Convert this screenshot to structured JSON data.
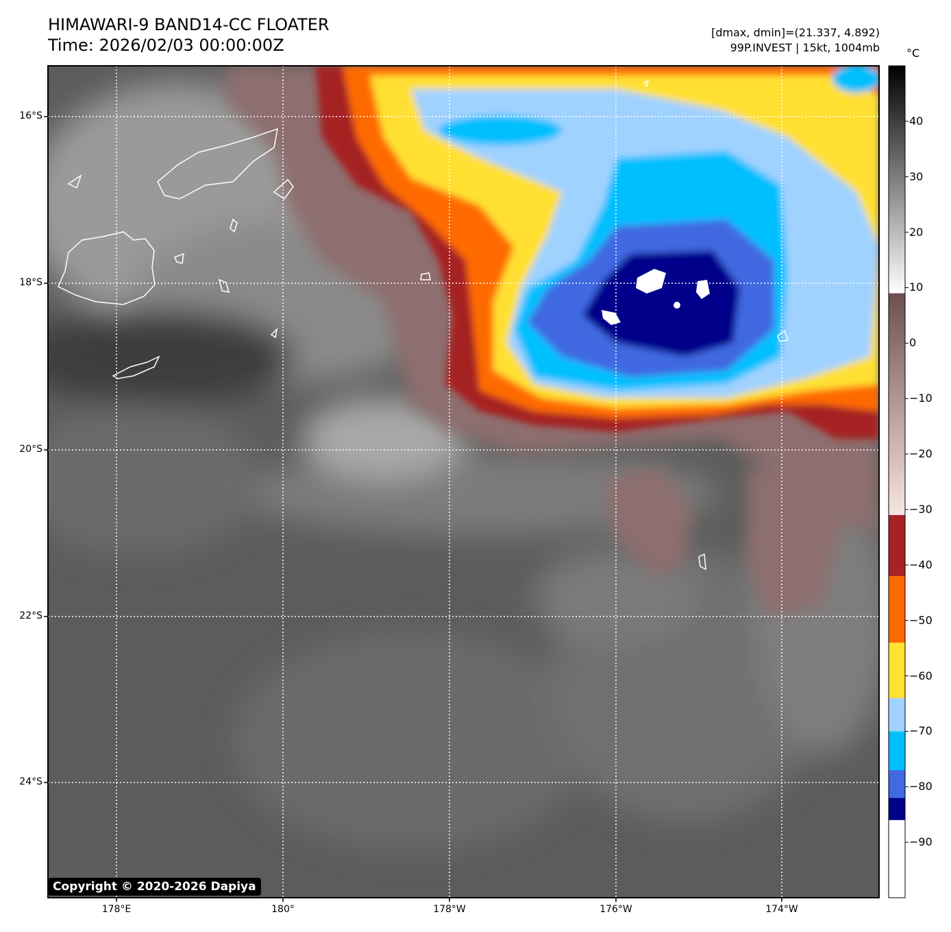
{
  "header": {
    "title_line1": "HIMAWARI-9 BAND14-CC FLOATER",
    "title_line2": "Time: 2026/02/03 00:00:00Z",
    "stats_line": "[dmax, dmin]=(21.337, 4.892)",
    "storm_line": "99P.INVEST | 15kt, 1004mb"
  },
  "axes": {
    "lat_labels": [
      "16°S",
      "18°S",
      "20°S",
      "22°S",
      "24°S"
    ],
    "lon_labels": [
      "178°E",
      "180°",
      "178°W",
      "176°W",
      "174°W"
    ]
  },
  "colorbar": {
    "unit": "°C",
    "tick_labels": [
      "40",
      "30",
      "20",
      "10",
      "0",
      "−10",
      "−20",
      "−30",
      "−40",
      "−50",
      "−60",
      "−70",
      "−80",
      "−90"
    ],
    "segments": [
      {
        "from": -100,
        "to": -86,
        "color": "#ffffff"
      },
      {
        "from": -86,
        "to": -82,
        "color": "#00008b"
      },
      {
        "from": -82,
        "to": -77,
        "color": "#4169e1"
      },
      {
        "from": -77,
        "to": -70,
        "color": "#00bfff"
      },
      {
        "from": -70,
        "to": -64,
        "color": "#a0d2ff"
      },
      {
        "from": -64,
        "to": -54,
        "color": "#ffe033"
      },
      {
        "from": -54,
        "to": -42,
        "color": "#ff6a00"
      },
      {
        "from": -42,
        "to": -31,
        "color": "#a52323"
      }
    ],
    "gradient_segments": [
      {
        "from": -31,
        "to": 9,
        "color_low": "#f8e4e4",
        "color_high": "#6e4e4e"
      },
      {
        "from": 9,
        "to": 50,
        "color_low": "#ffffff",
        "color_high": "#000000"
      }
    ],
    "range": [
      -100,
      50
    ]
  },
  "colors": {
    "gray_background": "#5c5c5c",
    "frame": "#000000",
    "coastline": "#ffffff",
    "grid": "#ffffff"
  },
  "footer": {
    "copyright": "Copyright © 2020-2026 Dapiya"
  }
}
